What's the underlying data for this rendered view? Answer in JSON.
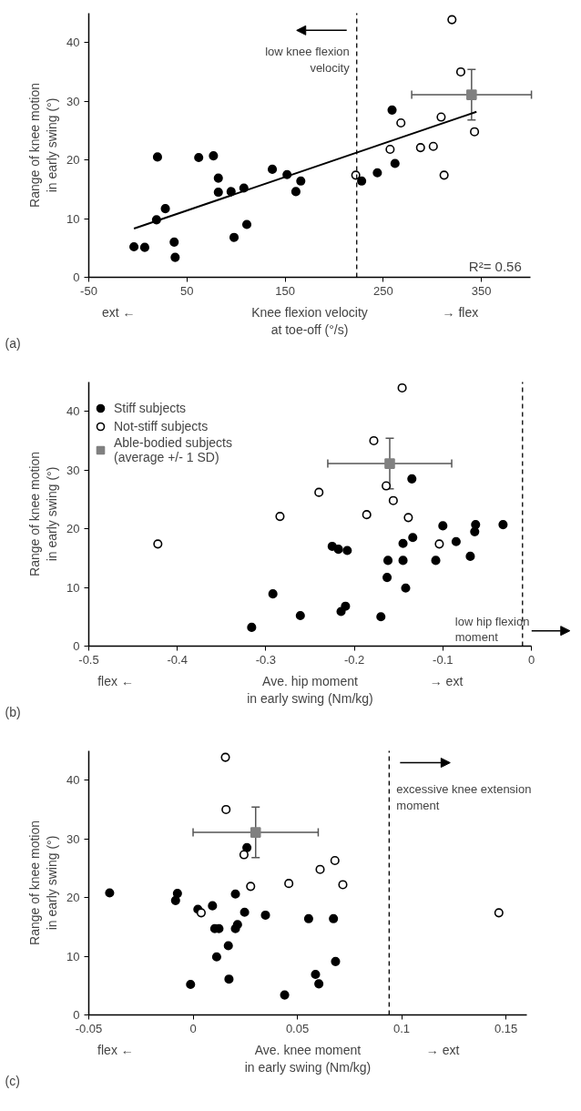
{
  "chart_data": [
    {
      "type": "scatter",
      "xlabel": "Knee flexion velocity\nat toe-off (°/s)",
      "ylabel": "Range of knee motion\nin early swing (°)",
      "xlim": [
        -50,
        400
      ],
      "xticks": [
        -50,
        50,
        150,
        250,
        350
      ],
      "ylim": [
        0,
        45
      ],
      "yticks": [
        0,
        10,
        20,
        30,
        40
      ],
      "marker": "circle",
      "series": [
        {
          "color": "#000000",
          "x": [
            -4,
            7,
            19,
            20,
            28,
            37,
            38,
            62,
            77,
            82,
            82,
            95,
            98,
            108,
            111,
            137,
            152,
            161,
            166,
            228,
            259,
            262,
            244
          ],
          "values": [
            5.2,
            5.1,
            9.8,
            20.5,
            11.7,
            6.0,
            3.4,
            20.4,
            20.7,
            16.9,
            14.5,
            14.6,
            6.8,
            15.2,
            9.0,
            18.4,
            17.5,
            14.6,
            16.4,
            16.4,
            28.5,
            19.4,
            17.8
          ]
        },
        {
          "color": "#ffffff",
          "x": [
            222,
            320,
            329,
            268,
            309,
            257,
            288,
            301,
            312,
            343
          ],
          "values": [
            17.4,
            43.9,
            35.0,
            26.3,
            27.3,
            21.8,
            22.1,
            22.3,
            17.4,
            24.8
          ]
        },
        {
          "color": "#808080",
          "marker": "square",
          "x": [
            340
          ],
          "values": [
            31.1
          ],
          "errors": [
            4.3
          ],
          "xerrors": [
            61
          ]
        },
        {
          "type": "line",
          "color": "#000000",
          "marker": "none",
          "x": [
            -4,
            345
          ],
          "values": [
            8.3,
            28.2
          ]
        }
      ],
      "ref_lines": [
        {
          "axis": "x",
          "value": 223,
          "label": "low knee flexion\nvelocity",
          "color": "#000000",
          "line_style": "dashed"
        }
      ],
      "annotations": [
        "ext ←",
        "→ flex",
        "R²= 0.56",
        "(a)"
      ]
    },
    {
      "type": "scatter",
      "xlabel": "Ave. hip moment\nin early swing (Nm/kg)",
      "ylabel": "Range of knee motion\nin early swing (°)",
      "xlim": [
        -0.5,
        0
      ],
      "xticks": [
        -0.5,
        -0.4,
        -0.3,
        -0.2,
        -0.1,
        0
      ],
      "ylim": [
        0,
        45
      ],
      "yticks": [
        0,
        10,
        20,
        30,
        40
      ],
      "marker": "circle",
      "legend": "top left",
      "series": [
        {
          "name": "Stiff subjects",
          "color": "#000000",
          "x": [
            -0.316,
            -0.292,
            -0.261,
            -0.135,
            -0.225,
            -0.218,
            -0.208,
            -0.1,
            -0.063,
            -0.064,
            -0.032,
            -0.134,
            -0.145,
            -0.085,
            -0.162,
            -0.145,
            -0.108,
            -0.069,
            -0.163,
            -0.142,
            -0.215,
            -0.21,
            -0.17
          ],
          "values": [
            3.2,
            8.9,
            5.2,
            28.5,
            17.0,
            16.5,
            16.3,
            20.5,
            20.7,
            19.5,
            20.7,
            18.5,
            17.5,
            17.8,
            14.6,
            14.6,
            14.6,
            15.3,
            11.7,
            9.9,
            5.9,
            6.8,
            5.0
          ]
        },
        {
          "name": "Not-stiff subjects",
          "color": "#ffffff",
          "x": [
            -0.422,
            -0.284,
            -0.24,
            -0.146,
            -0.178,
            -0.164,
            -0.156,
            -0.186,
            -0.139,
            -0.104
          ],
          "values": [
            17.4,
            22.1,
            26.2,
            44.0,
            35.0,
            27.3,
            24.8,
            22.4,
            21.9,
            17.4
          ]
        },
        {
          "name": "Able-bodied subjects\n(average +/- 1 SD)",
          "color": "#808080",
          "marker": "square",
          "x": [
            -0.16
          ],
          "values": [
            31.1
          ],
          "errors": [
            4.3
          ],
          "xerrors": [
            0.07
          ]
        }
      ],
      "ref_lines": [
        {
          "axis": "x",
          "value": -0.01,
          "label": "low hip flexion\nmoment",
          "color": "#000000",
          "line_style": "dashed"
        }
      ],
      "annotations": [
        "flex ←",
        "→ ext",
        "(b)"
      ]
    },
    {
      "type": "scatter",
      "xlabel": "Ave. knee moment\nin early swing (Nm/kg)",
      "ylabel": "Range of knee motion\nin early swing (°)",
      "xlim": [
        -0.05,
        0.16
      ],
      "xticks": [
        -0.05,
        0,
        0.05,
        0.1,
        0.15
      ],
      "ylim": [
        0,
        45
      ],
      "yticks": [
        0,
        10,
        20,
        30,
        40
      ],
      "marker": "circle",
      "series": [
        {
          "color": "#000000",
          "x": [
            -0.04,
            -0.0075,
            -0.0084,
            0.0258,
            0.0203,
            0.0023,
            0.0093,
            0.0247,
            0.0347,
            0.0554,
            0.0104,
            0.0124,
            0.0203,
            0.0213,
            0.0169,
            0.0113,
            -0.0012,
            0.0172,
            0.0439,
            0.0587,
            0.0603,
            0.0673,
            0.0683
          ],
          "values": [
            20.8,
            20.7,
            19.5,
            28.5,
            20.6,
            18.0,
            18.6,
            17.5,
            17.0,
            16.4,
            14.7,
            14.7,
            14.7,
            15.4,
            11.8,
            9.9,
            5.2,
            6.1,
            3.4,
            6.9,
            5.3,
            16.4,
            9.1
          ]
        },
        {
          "color": "#ffffff",
          "x": [
            0.0155,
            0.0158,
            0.0244,
            0.0276,
            0.0459,
            0.0609,
            0.0039,
            0.068,
            0.0718,
            0.1466
          ],
          "values": [
            43.9,
            35.0,
            27.3,
            21.9,
            22.4,
            24.8,
            17.4,
            26.3,
            22.2,
            17.4
          ]
        },
        {
          "color": "#808080",
          "marker": "square",
          "x": [
            0.03
          ],
          "values": [
            31.1
          ],
          "errors": [
            4.3
          ],
          "xerrors": [
            0.03
          ]
        }
      ],
      "ref_lines": [
        {
          "axis": "x",
          "value": 0.094,
          "label": "excessive knee extension\nmoment",
          "color": "#000000",
          "line_style": "dashed"
        }
      ],
      "annotations": [
        "flex ←",
        "→ ext",
        "(c)"
      ]
    }
  ]
}
